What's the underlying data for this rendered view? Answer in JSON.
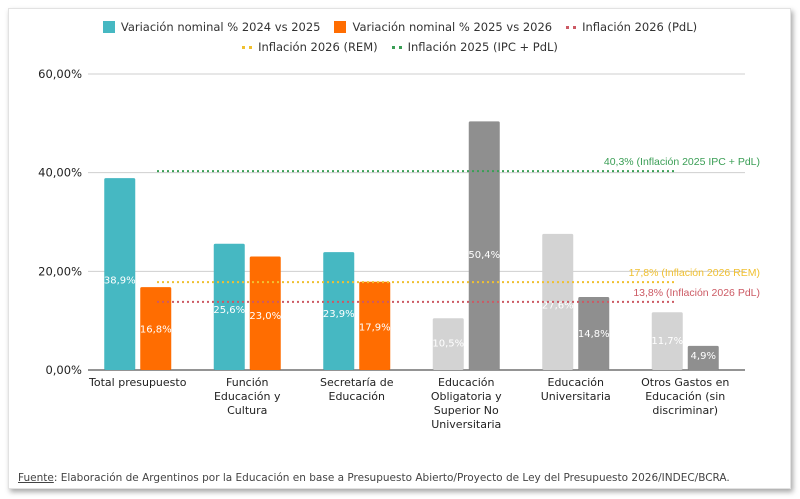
{
  "chart_data": {
    "type": "bar",
    "title": "",
    "xlabel": "",
    "ylabel": "",
    "ylim": [
      0,
      60
    ],
    "yticks": [
      "0,00%",
      "20,00%",
      "40,00%",
      "60,00%"
    ],
    "ytick_values": [
      0,
      20,
      40,
      60
    ],
    "grid": true,
    "legend_position": "top-center",
    "categories": [
      "Total presupuesto",
      "Función\nEducación y\nCultura",
      "Secretaría de\nEducación",
      "Educación\nObligatoria y\nSuperior No\nUniversitaria",
      "Educación\nUniversitaria",
      "Otros Gastos en\nEducación (sin\ndiscriminar)"
    ],
    "series": [
      {
        "name": "Variación nominal % 2024 vs 2025",
        "color": "#46b8c2",
        "values": [
          38.9,
          25.6,
          23.9,
          10.5,
          27.6,
          11.7
        ],
        "labels": [
          "38,9%",
          "25,6%",
          "23,9%",
          "10,5%",
          "27,6%",
          "11,7%"
        ],
        "point_colors": [
          "#46b8c2",
          "#46b8c2",
          "#46b8c2",
          "#d3d3d3",
          "#d3d3d3",
          "#d3d3d3"
        ]
      },
      {
        "name": "Variación nominal % 2025 vs 2026",
        "color": "#ff6d01",
        "values": [
          16.8,
          23.0,
          17.9,
          50.4,
          14.8,
          4.9
        ],
        "labels": [
          "16,8%",
          "23,0%",
          "17,9%",
          "50,4%",
          "14,8%",
          "4,9%"
        ],
        "point_colors": [
          "#ff6d01",
          "#ff6d01",
          "#ff6d01",
          "#8f8f8f",
          "#8f8f8f",
          "#8f8f8f"
        ]
      }
    ],
    "reference_lines": [
      {
        "name": "Inflación 2026 (PdL)",
        "value": 13.8,
        "color": "#cc5a64",
        "annotation": "13,8% (Inflación 2026 PdL)"
      },
      {
        "name": "Inflación 2026 (REM)",
        "value": 17.8,
        "color": "#f0c030",
        "annotation": "17,8% (Inflación 2026 REM)"
      },
      {
        "name": "Inflación 2025 (IPC + PdL)",
        "value": 40.3,
        "color": "#3a9e55",
        "annotation": "40,3% (Inflación 2025 IPC + PdL)"
      }
    ]
  },
  "legend": {
    "row1": [
      {
        "label": "Variación nominal % 2024 vs 2025",
        "kind": "swatch",
        "color": "#46b8c2"
      },
      {
        "label": "Variación nominal % 2025 vs 2026",
        "kind": "swatch",
        "color": "#ff6d01"
      },
      {
        "label": "Inflación 2026 (PdL)",
        "kind": "dots",
        "color": "#cc5a64"
      }
    ],
    "row2": [
      {
        "label": "Inflación 2026 (REM)",
        "kind": "dots",
        "color": "#f0c030"
      },
      {
        "label": "Inflación 2025 (IPC + PdL)",
        "kind": "dots",
        "color": "#3a9e55"
      }
    ]
  },
  "source": {
    "prefix": "Fuente",
    "text": ": Elaboración de Argentinos por la Educación en base a Presupuesto Abierto/Proyecto de Ley del Presupuesto 2026/INDEC/BCRA."
  }
}
